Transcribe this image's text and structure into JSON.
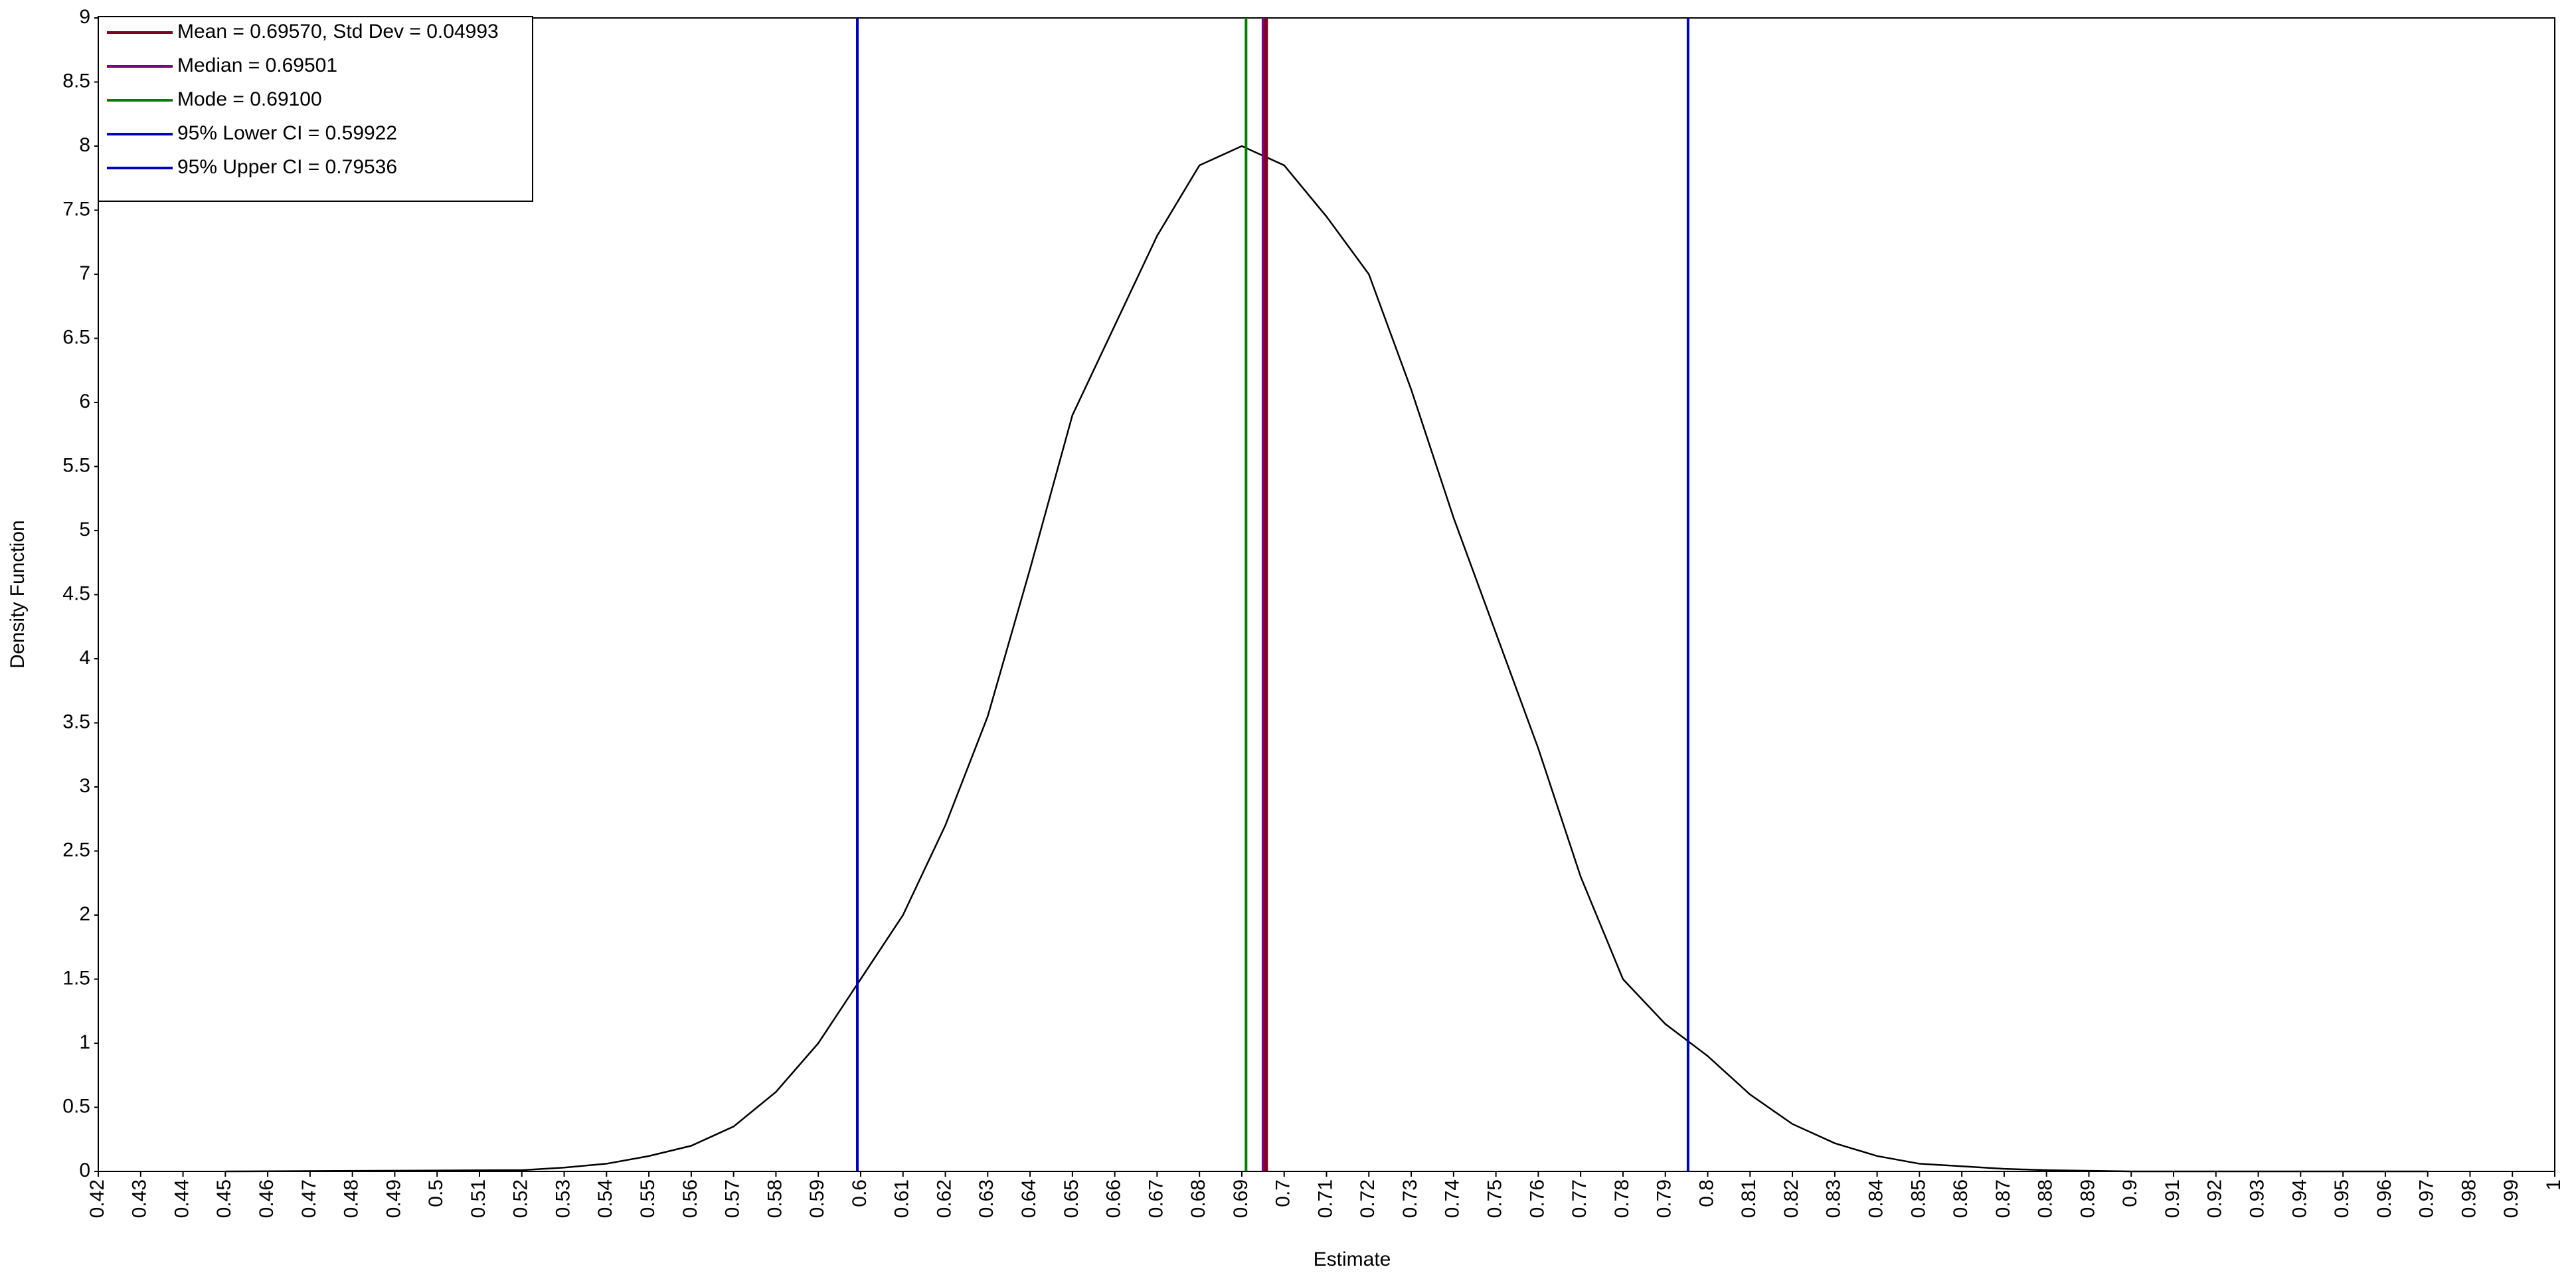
{
  "chart_data": {
    "type": "line",
    "xlabel": "Estimate",
    "ylabel": "Density Function",
    "x": [
      0.45,
      0.52,
      0.53,
      0.54,
      0.55,
      0.56,
      0.57,
      0.58,
      0.59,
      0.6,
      0.61,
      0.62,
      0.63,
      0.64,
      0.65,
      0.66,
      0.67,
      0.68,
      0.69,
      0.7,
      0.71,
      0.72,
      0.73,
      0.74,
      0.75,
      0.76,
      0.77,
      0.78,
      0.79,
      0.8,
      0.81,
      0.82,
      0.83,
      0.84,
      0.85,
      0.86,
      0.87,
      0.88,
      0.9,
      0.97
    ],
    "series": [
      {
        "color": "#000000",
        "values": [
          0,
          0.01,
          0.03,
          0.06,
          0.12,
          0.2,
          0.35,
          0.62,
          1.0,
          1.5,
          2.0,
          2.7,
          3.55,
          4.7,
          5.9,
          6.6,
          7.3,
          7.85,
          8.0,
          7.85,
          7.45,
          7.0,
          6.1,
          5.1,
          4.2,
          3.3,
          2.3,
          1.5,
          1.15,
          0.9,
          0.6,
          0.37,
          0.22,
          0.12,
          0.06,
          0.04,
          0.02,
          0.01,
          0,
          0
        ]
      }
    ],
    "vlines": [
      {
        "name": "Mean = 0.69570, Std Dev = 0.04993",
        "color": "#800020",
        "x": 0.6957
      },
      {
        "name": "Median = 0.69501",
        "color": "#800080",
        "x": 0.69501
      },
      {
        "name": "Mode = 0.69100",
        "color": "#008000",
        "x": 0.691
      },
      {
        "name": "95% Lower CI = 0.59922",
        "color": "#0000c0",
        "x": 0.59922
      },
      {
        "name": "95% Upper CI = 0.79536",
        "color": "#0000c0",
        "x": 0.79536
      }
    ],
    "legend": "top-left",
    "xlim": [
      0.42,
      1
    ],
    "xticks": [
      0.42,
      0.43,
      0.44,
      0.45,
      0.46,
      0.47,
      0.48,
      0.49,
      0.5,
      0.51,
      0.52,
      0.53,
      0.54,
      0.55,
      0.56,
      0.57,
      0.58,
      0.59,
      0.6,
      0.61,
      0.62,
      0.63,
      0.64,
      0.65,
      0.66,
      0.67,
      0.68,
      0.69,
      0.7,
      0.71,
      0.72,
      0.73,
      0.74,
      0.75,
      0.76,
      0.77,
      0.78,
      0.79,
      0.8,
      0.81,
      0.82,
      0.83,
      0.84,
      0.85,
      0.86,
      0.87,
      0.88,
      0.89,
      0.9,
      0.91,
      0.92,
      0.93,
      0.94,
      0.95,
      0.96,
      0.97,
      0.98,
      0.99,
      1
    ],
    "ylim": [
      0,
      9
    ],
    "yticks": [
      0,
      0.5,
      1,
      1.5,
      2,
      2.5,
      3,
      3.5,
      4,
      4.5,
      5,
      5.5,
      6,
      6.5,
      7,
      7.5,
      8,
      8.5,
      9
    ],
    "grid": false
  }
}
